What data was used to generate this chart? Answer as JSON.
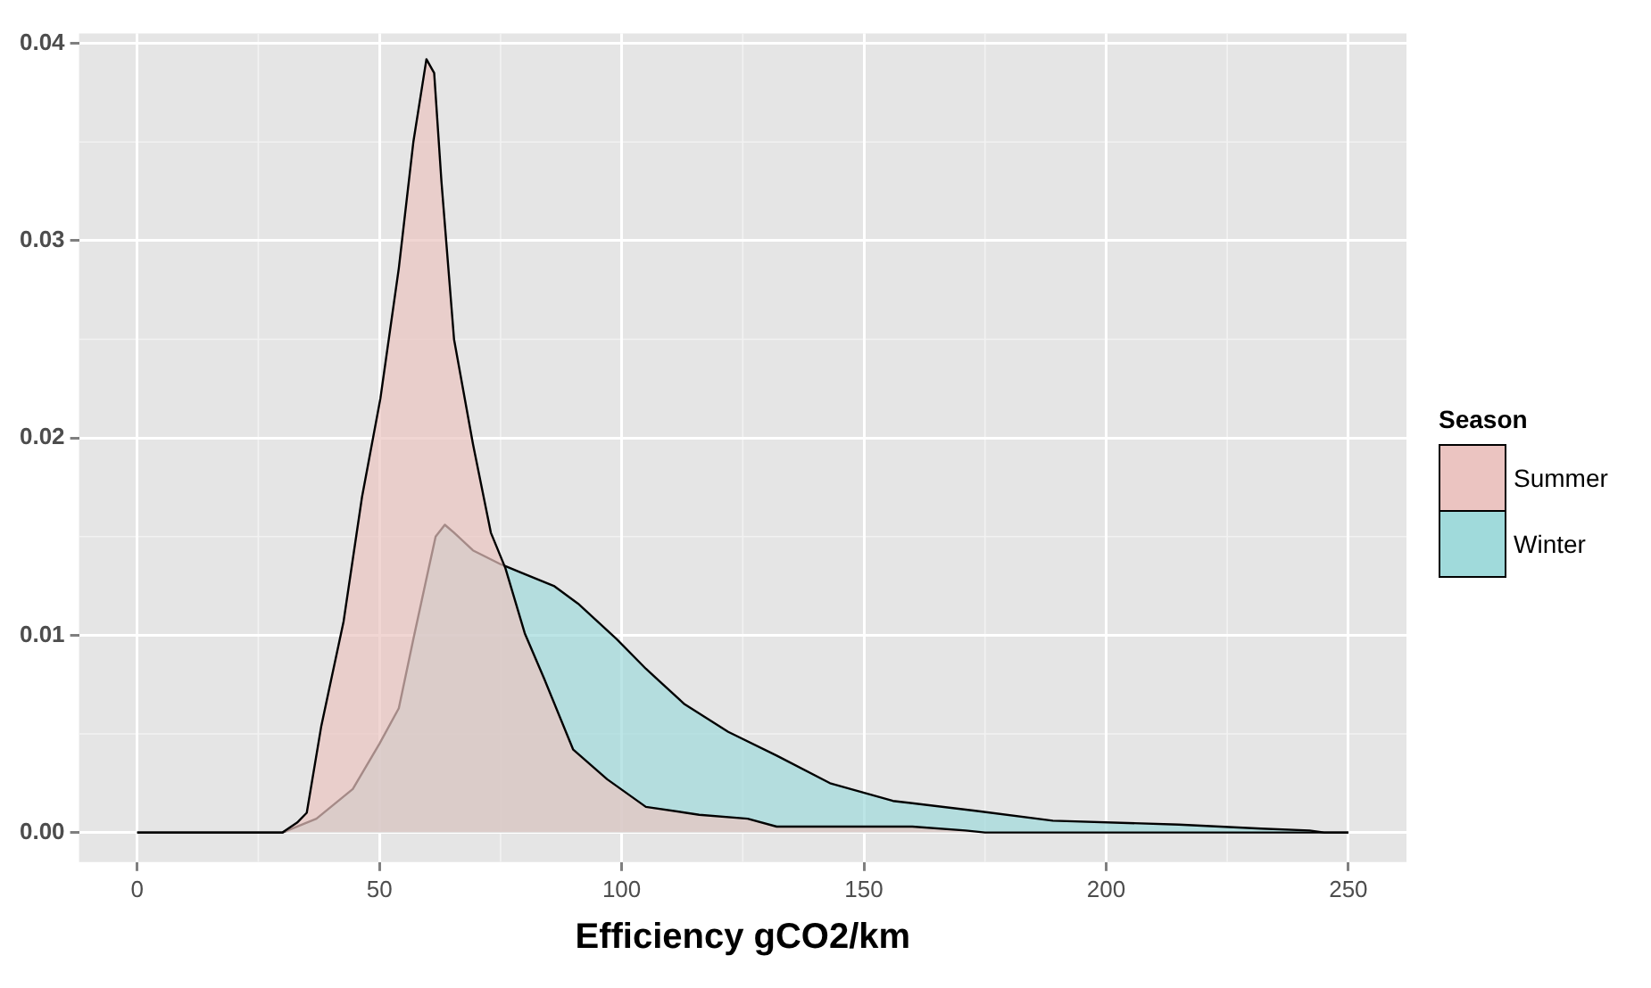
{
  "chart_data": {
    "type": "area",
    "xlabel": "Efficiency gCO2/km",
    "legend_title": "Season",
    "legend": "right",
    "grid": true,
    "line_style": "solid",
    "marker": "none",
    "xlim": [
      -12,
      262
    ],
    "xticks": [
      0,
      50,
      100,
      150,
      200,
      250
    ],
    "ylim": [
      -0.0015,
      0.0405
    ],
    "yticks": [
      {
        "value": 0,
        "label": "0.00"
      },
      {
        "value": 0.01,
        "label": "0.01"
      },
      {
        "value": 0.02,
        "label": "0.02"
      },
      {
        "value": 0.03,
        "label": "0.03"
      },
      {
        "value": 0.04,
        "label": "0.04"
      }
    ],
    "series": [
      {
        "name": "Summer",
        "color": "#ebc4c1",
        "x": [
          0,
          30,
          33,
          35,
          38,
          42.6,
          46.4,
          50.2,
          54,
          57,
          59.7,
          61.3,
          62.8,
          65.4,
          69.3,
          73,
          76,
          80,
          84,
          90,
          97,
          105,
          116,
          126,
          132,
          143,
          160,
          171,
          175,
          250
        ],
        "values": [
          0,
          0,
          0.0005,
          0.001,
          0.0054,
          0.0107,
          0.017,
          0.022,
          0.0286,
          0.035,
          0.0392,
          0.0385,
          0.033,
          0.025,
          0.0197,
          0.0152,
          0.0134,
          0.0101,
          0.0078,
          0.0042,
          0.0027,
          0.0013,
          0.0009,
          0.0007,
          0.0003,
          0.0003,
          0.0003,
          0.0001,
          0,
          0
        ]
      },
      {
        "name": "Winter",
        "color": "#a0dadb",
        "x": [
          0,
          30,
          37,
          44.5,
          50,
          54,
          57,
          60,
          61.6,
          63.5,
          65.4,
          69.3,
          75,
          79,
          86,
          91,
          99,
          105,
          113,
          122,
          132,
          143,
          156,
          173,
          189,
          215,
          232,
          242,
          245,
          250
        ],
        "values": [
          0,
          0,
          0.0007,
          0.0022,
          0.0045,
          0.0063,
          0.0098,
          0.0132,
          0.015,
          0.0156,
          0.0152,
          0.0143,
          0.0136,
          0.0132,
          0.0125,
          0.0116,
          0.0098,
          0.0083,
          0.0065,
          0.0051,
          0.0039,
          0.0025,
          0.0016,
          0.0011,
          0.0006,
          0.0004,
          0.0002,
          0.0001,
          0,
          0
        ]
      }
    ]
  }
}
